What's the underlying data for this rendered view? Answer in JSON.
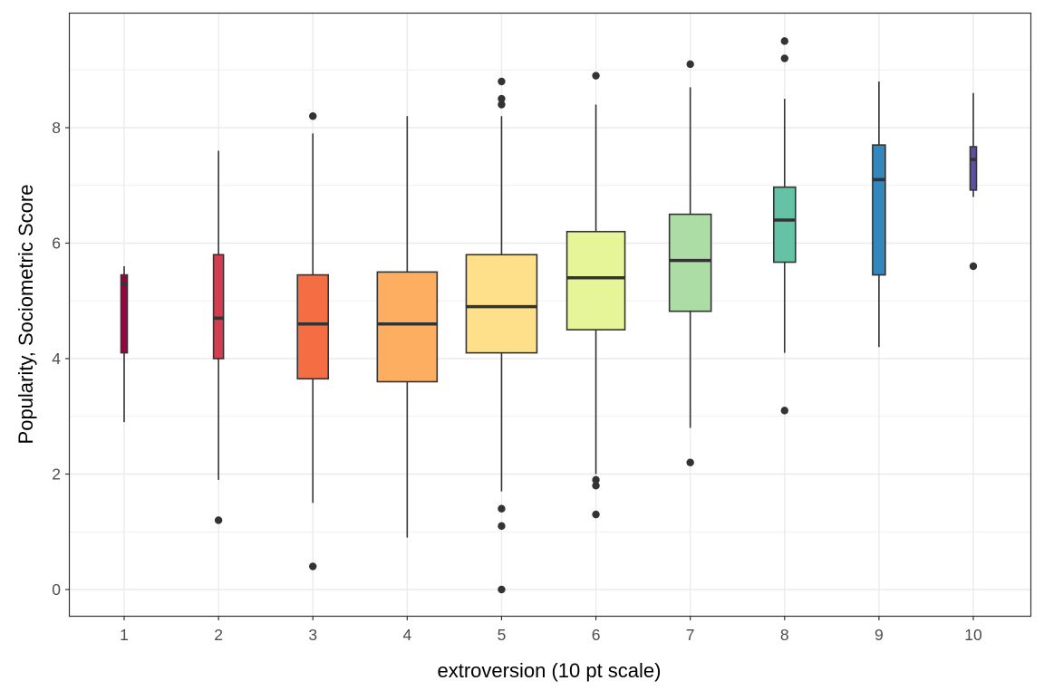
{
  "chart_data": {
    "type": "boxplot",
    "title": "",
    "xlabel": "extroversion (10 pt scale)",
    "ylabel": "Popularity, Sociometric Score",
    "ylim": [
      -0.45,
      9.85
    ],
    "yticks": [
      0,
      2,
      4,
      6,
      8
    ],
    "grid": true,
    "legend": "none",
    "categories": [
      "1",
      "2",
      "3",
      "4",
      "5",
      "6",
      "7",
      "8",
      "9",
      "10"
    ],
    "colors": [
      "#9E0142",
      "#D53E4F",
      "#F46D43",
      "#FDAE61",
      "#FEE08B",
      "#E6F598",
      "#ABDDA4",
      "#66C2A5",
      "#3288BD",
      "#5E4FA2"
    ],
    "boxes": [
      {
        "whisker_low": 2.9,
        "q1": 4.1,
        "median": 5.3,
        "q3": 5.45,
        "whisker_high": 5.6,
        "outliers": []
      },
      {
        "whisker_low": 1.9,
        "q1": 4.0,
        "median": 4.7,
        "q3": 5.8,
        "whisker_high": 7.6,
        "outliers": [
          1.2
        ]
      },
      {
        "whisker_low": 1.5,
        "q1": 3.65,
        "median": 4.6,
        "q3": 5.45,
        "whisker_high": 7.9,
        "outliers": [
          0.4,
          8.2
        ]
      },
      {
        "whisker_low": 0.9,
        "q1": 3.6,
        "median": 4.6,
        "q3": 5.5,
        "whisker_high": 8.2,
        "outliers": []
      },
      {
        "whisker_low": 1.7,
        "q1": 4.1,
        "median": 4.9,
        "q3": 5.8,
        "whisker_high": 8.2,
        "outliers": [
          0.0,
          1.1,
          1.4,
          8.4,
          8.5,
          8.8
        ]
      },
      {
        "whisker_low": 2.0,
        "q1": 4.5,
        "median": 5.4,
        "q3": 6.2,
        "whisker_high": 8.4,
        "outliers": [
          1.3,
          1.8,
          1.9,
          8.9
        ]
      },
      {
        "whisker_low": 2.8,
        "q1": 4.82,
        "median": 5.7,
        "q3": 6.5,
        "whisker_high": 8.7,
        "outliers": [
          2.2,
          9.1
        ]
      },
      {
        "whisker_low": 4.1,
        "q1": 5.67,
        "median": 6.4,
        "q3": 6.97,
        "whisker_high": 8.5,
        "outliers": [
          3.1,
          9.2,
          9.5
        ]
      },
      {
        "whisker_low": 4.2,
        "q1": 5.45,
        "median": 7.1,
        "q3": 7.7,
        "whisker_high": 8.8,
        "outliers": []
      },
      {
        "whisker_low": 6.8,
        "q1": 6.92,
        "median": 7.45,
        "q3": 7.67,
        "whisker_high": 8.6,
        "outliers": [
          5.6
        ]
      }
    ]
  }
}
